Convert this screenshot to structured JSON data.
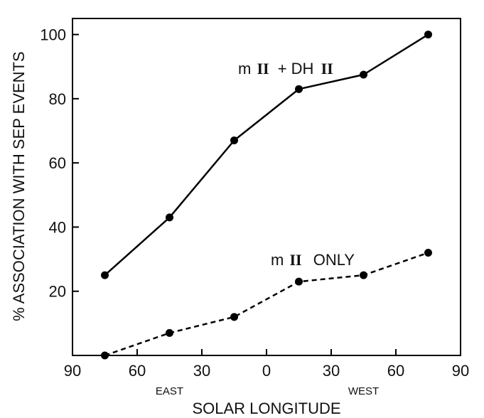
{
  "chart_data": {
    "type": "line",
    "title": "",
    "xlabel": "SOLAR LONGITUDE",
    "ylabel": "% ASSOCIATION WITH SEP EVENTS",
    "x_sub_labels": [
      {
        "text": "EAST",
        "x": -45
      },
      {
        "text": "WEST",
        "x": 45
      }
    ],
    "x_position_range": [
      -90,
      90
    ],
    "x_ticks": [
      -90,
      -60,
      -30,
      0,
      30,
      60,
      90
    ],
    "x_tick_labels": [
      "90",
      "60",
      "30",
      "0",
      "30",
      "60",
      "90"
    ],
    "ylim": [
      0,
      105
    ],
    "y_ticks": [
      20,
      40,
      60,
      80,
      100
    ],
    "y_tick_labels": [
      "20",
      "40",
      "60",
      "80",
      "100"
    ],
    "grid": false,
    "series": [
      {
        "name": "mII + DHII",
        "name_parts": {
          "prefix": "m",
          "roman1": "II",
          "middle": "+ DH",
          "roman2": "II"
        },
        "line_style": "solid",
        "x": [
          -75,
          -45,
          -15,
          15,
          45,
          75
        ],
        "y": [
          25,
          43,
          67,
          83,
          87.5,
          100
        ]
      },
      {
        "name": "mII ONLY",
        "name_parts": {
          "prefix": "m",
          "roman1": "II",
          "suffix": "ONLY"
        },
        "line_style": "dashed",
        "x": [
          -75,
          -45,
          -15,
          15,
          45,
          75
        ],
        "y": [
          0,
          7,
          12,
          23,
          25,
          32
        ]
      }
    ],
    "colors": {
      "line": "#000000",
      "marker": "#000000"
    }
  }
}
